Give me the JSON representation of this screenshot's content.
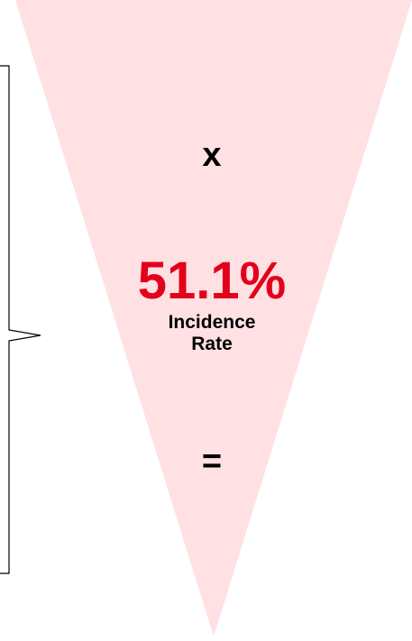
{
  "funnel": {
    "fill_color": "#ffe0e3",
    "brace_color": "#000000"
  },
  "operator_multiply": "x",
  "incidence": {
    "value": "51.1%",
    "label_line1": "Incidence",
    "label_line2": "Rate",
    "value_color": "#e3001b"
  },
  "operator_equals": "="
}
